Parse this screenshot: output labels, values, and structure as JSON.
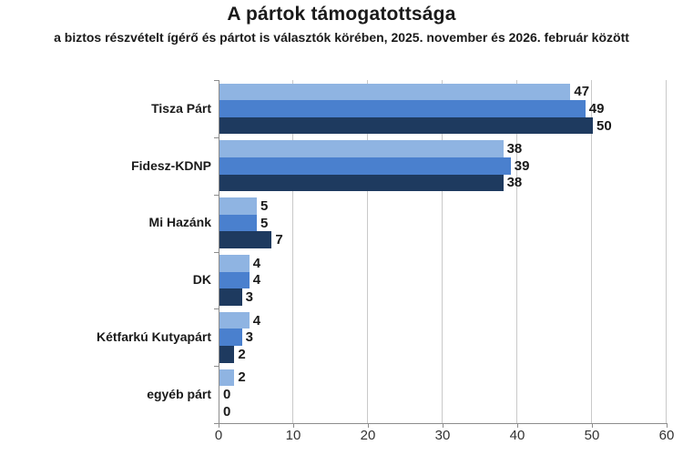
{
  "chart_data": {
    "type": "bar",
    "orientation": "horizontal",
    "title": "A pártok támogatottsága",
    "subtitle": "a biztos részvételt ígérő és pártot is választók körében, 2025. november és 2026. február között",
    "categories": [
      "Tisza Párt",
      "Fidesz-KDNP",
      "Mi Hazánk",
      "DK",
      "Kétfarkú Kutyapárt",
      "egyéb párt"
    ],
    "series": [
      {
        "name": "top-bar",
        "color": "#8FB4E2",
        "values": [
          47,
          38,
          5,
          4,
          4,
          2
        ]
      },
      {
        "name": "middle-bar",
        "color": "#4A80CE",
        "values": [
          49,
          39,
          5,
          4,
          3,
          0
        ]
      },
      {
        "name": "bottom-bar",
        "color": "#1E3A5F",
        "values": [
          50,
          38,
          7,
          3,
          2,
          0
        ]
      }
    ],
    "xlim": [
      0,
      60
    ],
    "x_ticks": [
      "0",
      "10",
      "20",
      "30",
      "40",
      "50",
      "60"
    ],
    "grid": true,
    "legend": false,
    "value_labels_shown": true,
    "ylabel": "",
    "xlabel": ""
  },
  "style": {
    "grid_color": "#C9C9C9",
    "axis_color": "#8C8C8C",
    "text_color": "#1a1a1a",
    "background": "#ffffff"
  }
}
